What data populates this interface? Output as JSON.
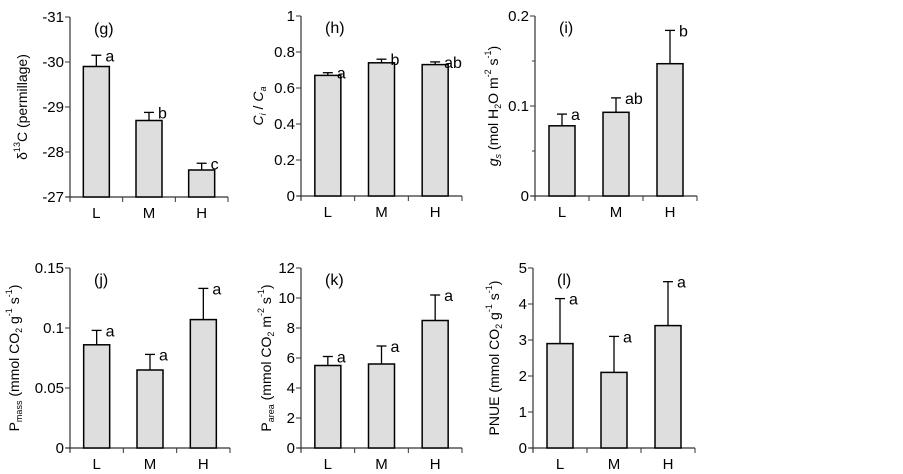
{
  "chart_data": [
    {
      "id": "g",
      "type": "bar",
      "panel_label": "(g)",
      "ylabel": "δ13C (permillage)",
      "ylabel_parts": [
        {
          "t": "δ"
        },
        {
          "t": "13",
          "sup": true
        },
        {
          "t": "C (permillage)"
        }
      ],
      "categories": [
        "L",
        "M",
        "H"
      ],
      "values": [
        -29.9,
        -28.7,
        -27.6
      ],
      "errors": [
        0.25,
        0.18,
        0.15
      ],
      "letters": [
        "a",
        "b",
        "c"
      ],
      "ylim": [
        -27,
        -31
      ],
      "inverted": true,
      "yticks": [
        -31,
        -30,
        -29,
        -28,
        -27
      ],
      "ytick_labels": [
        "-31",
        "-30",
        "-29",
        "-28",
        "-27"
      ],
      "minor_yticks": []
    },
    {
      "id": "h",
      "type": "bar",
      "panel_label": "(h)",
      "ylabel": "Ci / Ca",
      "ylabel_parts": [
        {
          "t": "C",
          "italic": true
        },
        {
          "t": "i",
          "italic": true,
          "sub": true
        },
        {
          "t": " / "
        },
        {
          "t": "C",
          "italic": true
        },
        {
          "t": "a",
          "italic": true,
          "sub": true
        }
      ],
      "categories": [
        "L",
        "M",
        "H"
      ],
      "values": [
        0.67,
        0.74,
        0.73
      ],
      "errors": [
        0.015,
        0.02,
        0.015
      ],
      "letters": [
        "a",
        "b",
        "ab"
      ],
      "ylim": [
        0,
        1
      ],
      "yticks": [
        0,
        0.2,
        0.4,
        0.6,
        0.8,
        1
      ],
      "ytick_labels": [
        "0",
        "0.2",
        "0.4",
        "0.6",
        "0.8",
        "1"
      ],
      "minor_yticks": []
    },
    {
      "id": "i",
      "type": "bar",
      "panel_label": "(i)",
      "ylabel": "gs (mol H2O m-2 s-1)",
      "ylabel_parts": [
        {
          "t": "g",
          "italic": true
        },
        {
          "t": "s",
          "italic": true,
          "sub": true
        },
        {
          "t": " (mol H"
        },
        {
          "t": "2",
          "sub": true
        },
        {
          "t": "O m"
        },
        {
          "t": "-2",
          "sup": true
        },
        {
          "t": " s"
        },
        {
          "t": "-1",
          "sup": true
        },
        {
          "t": ")"
        }
      ],
      "categories": [
        "L",
        "M",
        "H"
      ],
      "values": [
        0.078,
        0.093,
        0.147
      ],
      "errors": [
        0.013,
        0.016,
        0.037
      ],
      "letters": [
        "a",
        "ab",
        "b"
      ],
      "ylim": [
        0,
        0.2
      ],
      "yticks": [
        0,
        0.1,
        0.2
      ],
      "ytick_labels": [
        "0",
        "0.1",
        "0.2"
      ],
      "minor_yticks": [
        0.05,
        0.15
      ]
    },
    {
      "id": "j",
      "type": "bar",
      "panel_label": "(j)",
      "ylabel": "Pmass (mmol CO2 g-1 s-1)",
      "ylabel_parts": [
        {
          "t": "P"
        },
        {
          "t": "mass",
          "sub": true
        },
        {
          "t": " (mmol CO"
        },
        {
          "t": "2",
          "sub": true
        },
        {
          "t": " g"
        },
        {
          "t": "-1",
          "sup": true
        },
        {
          "t": " s"
        },
        {
          "t": "-1",
          "sup": true
        },
        {
          "t": ")"
        }
      ],
      "categories": [
        "L",
        "M",
        "H"
      ],
      "values": [
        0.086,
        0.065,
        0.107
      ],
      "errors": [
        0.012,
        0.013,
        0.026
      ],
      "letters": [
        "a",
        "a",
        "a"
      ],
      "ylim": [
        0,
        0.15
      ],
      "yticks": [
        0,
        0.05,
        0.1,
        0.15
      ],
      "ytick_labels": [
        "0",
        "0.05",
        "0.1",
        "0.15"
      ],
      "minor_yticks": []
    },
    {
      "id": "k",
      "type": "bar",
      "panel_label": "(k)",
      "ylabel": "Parea (mmol CO2 m-2 s-1)",
      "ylabel_parts": [
        {
          "t": "P"
        },
        {
          "t": "area",
          "sub": true
        },
        {
          "t": " (mmol CO"
        },
        {
          "t": "2",
          "sub": true
        },
        {
          "t": " m"
        },
        {
          "t": "-2",
          "sup": true
        },
        {
          "t": " s"
        },
        {
          "t": "-1",
          "sup": true
        },
        {
          "t": ")"
        }
      ],
      "categories": [
        "L",
        "M",
        "H"
      ],
      "values": [
        5.5,
        5.6,
        8.5
      ],
      "errors": [
        0.6,
        1.2,
        1.7
      ],
      "letters": [
        "a",
        "a",
        "a"
      ],
      "ylim": [
        0,
        12
      ],
      "yticks": [
        0,
        2,
        4,
        6,
        8,
        10,
        12
      ],
      "ytick_labels": [
        "0",
        "2",
        "4",
        "6",
        "8",
        "10",
        "12"
      ],
      "minor_yticks": []
    },
    {
      "id": "l",
      "type": "bar",
      "panel_label": "(l)",
      "ylabel": "PNUE (mmol CO2 g-1 s-1)",
      "ylabel_parts": [
        {
          "t": "PNUE (mmol CO"
        },
        {
          "t": "2",
          "sub": true
        },
        {
          "t": " g"
        },
        {
          "t": "-1",
          "sup": true
        },
        {
          "t": " s"
        },
        {
          "t": "-1",
          "sup": true
        },
        {
          "t": ")"
        }
      ],
      "categories": [
        "L",
        "M",
        "H"
      ],
      "values": [
        2.9,
        2.1,
        3.4
      ],
      "errors": [
        1.25,
        1.0,
        1.22
      ],
      "letters": [
        "a",
        "a",
        "a"
      ],
      "ylim": [
        0,
        5
      ],
      "yticks": [
        0,
        1,
        2,
        3,
        4,
        5
      ],
      "ytick_labels": [
        "0",
        "1",
        "2",
        "3",
        "4",
        "5"
      ],
      "minor_yticks": []
    }
  ],
  "colors": {
    "bar_fill": "#dedede",
    "stroke": "#000000",
    "axis": "#333333"
  }
}
